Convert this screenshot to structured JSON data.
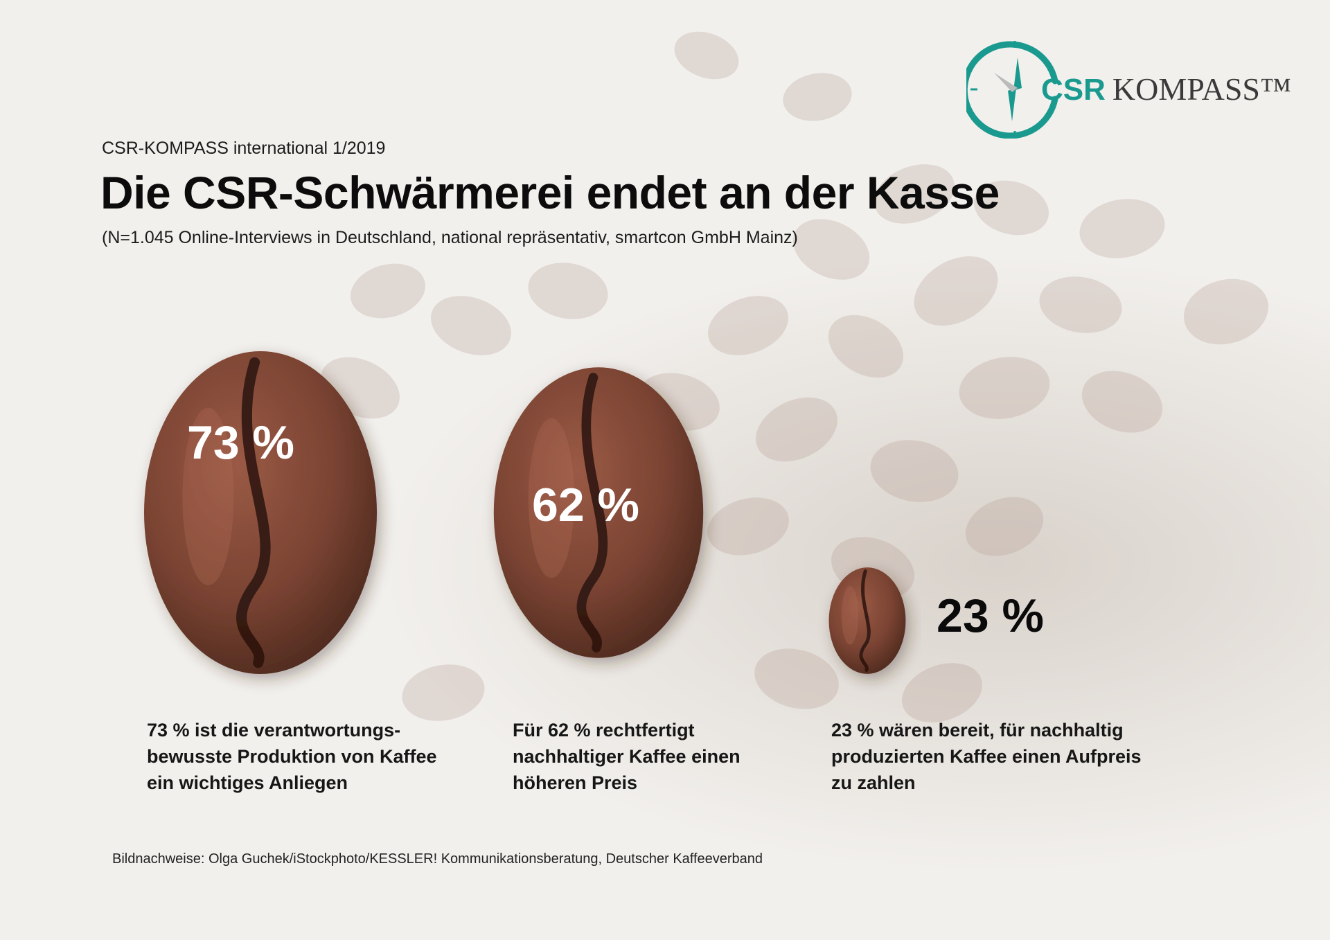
{
  "header": {
    "source_line": "CSR-KOMPASS international 1/2019",
    "title": "Die CSR-Schwärmerei endet an der Kasse",
    "sample_note": "(N=1.045 Online-Interviews in Deutschland, national repräsentativ, smartcon GmbH Mainz)"
  },
  "logo": {
    "word1": "CSR",
    "word2": "KOMPASS™",
    "accent_color": "#1a9a8f",
    "icon": "compass-icon"
  },
  "chart_data": {
    "type": "bar",
    "encoding": "coffee-bean size proportional to value",
    "unit": "%",
    "values": [
      73,
      62,
      23
    ],
    "value_labels": [
      "73  %",
      "62  %",
      "23 %"
    ],
    "categories": [
      [
        "73 % ist die verantwortungs-",
        "bewusste Produktion von Kaffee",
        "ein wichtiges Anliegen"
      ],
      [
        "Für 62 % rechtfertigt",
        "nachhaltiger Kaffee einen",
        "höheren Preis"
      ],
      [
        "23 % wären bereit, für nachhaltig",
        "produzierten Kaffee einen Aufpreis",
        "zu zahlen"
      ]
    ],
    "bean_color": "#7a4332"
  },
  "footer": {
    "credits": "Bildnachweise: Olga Guchek/iStockphoto/KESSLER! Kommunikationsberatung, Deutscher Kaffeeverband"
  }
}
